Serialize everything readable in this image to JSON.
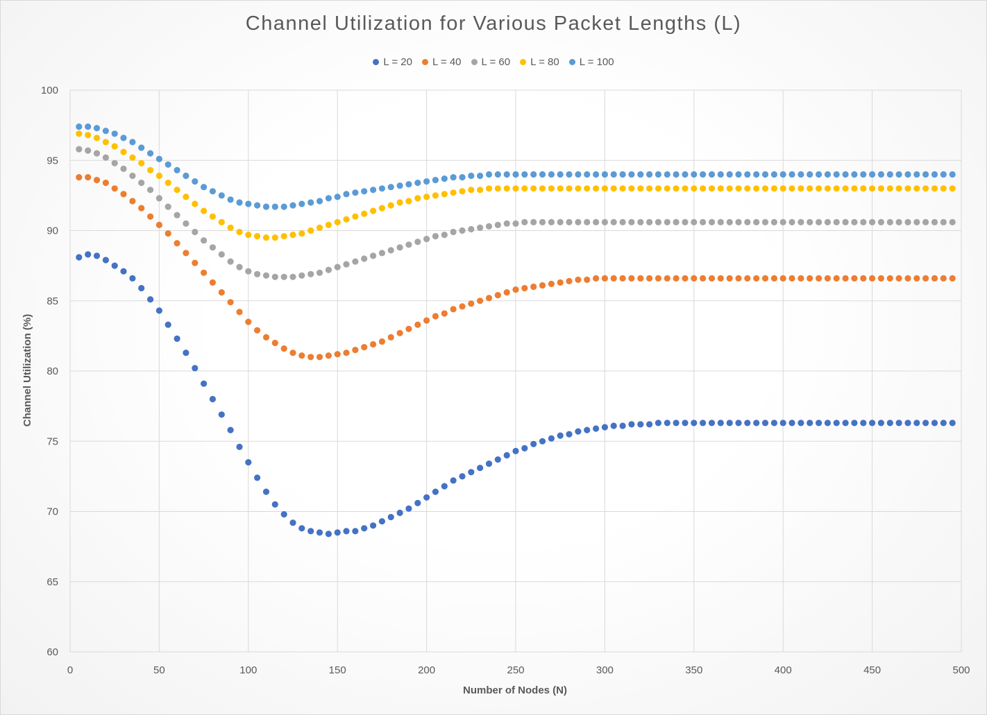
{
  "chart_data": {
    "type": "scatter",
    "title": "Channel Utilization for Various Packet Lengths (L)",
    "xlabel": "Number of Nodes (N)",
    "ylabel": "Channel Utilization (%)",
    "xlim": [
      0,
      500
    ],
    "ylim": [
      60,
      100
    ],
    "xticks": [
      0,
      50,
      100,
      150,
      200,
      250,
      300,
      350,
      400,
      450,
      500
    ],
    "yticks": [
      60,
      65,
      70,
      75,
      80,
      85,
      90,
      95,
      100
    ],
    "grid": true,
    "legend_position": "top",
    "x_sampling": {
      "start": 5,
      "end": 500,
      "step": 5
    },
    "series": [
      {
        "name": "L = 20",
        "color": "#4472C4",
        "values": [
          88.1,
          88.3,
          88.2,
          87.9,
          87.5,
          87.1,
          86.6,
          85.9,
          85.1,
          84.3,
          83.3,
          82.3,
          81.3,
          80.2,
          79.1,
          78.0,
          76.9,
          75.8,
          74.6,
          73.5,
          72.4,
          71.4,
          70.5,
          69.8,
          69.2,
          68.8,
          68.6,
          68.5,
          68.4,
          68.5,
          68.6,
          68.6,
          68.8,
          69.0,
          69.3,
          69.6,
          69.9,
          70.2,
          70.6,
          71.0,
          71.4,
          71.8,
          72.2,
          72.5,
          72.8,
          73.1,
          73.4,
          73.7,
          74.0,
          74.3,
          74.5,
          74.8,
          75.0,
          75.2,
          75.4,
          75.5,
          75.7,
          75.8,
          75.9,
          76.0,
          76.1,
          76.1,
          76.2,
          76.2,
          76.2,
          76.3,
          76.3,
          76.3,
          76.3,
          76.3,
          76.3,
          76.3,
          76.3,
          76.3,
          76.3,
          76.3,
          76.3,
          76.3,
          76.3,
          76.3,
          76.3,
          76.3,
          76.3,
          76.3,
          76.3,
          76.3,
          76.3,
          76.3,
          76.3,
          76.3,
          76.3,
          76.3,
          76.3,
          76.3,
          76.3,
          76.3,
          76.3,
          76.3,
          76.3
        ]
      },
      {
        "name": "L = 40",
        "color": "#ED7D31",
        "values": [
          93.8,
          93.8,
          93.6,
          93.4,
          93.0,
          92.6,
          92.1,
          91.6,
          91.0,
          90.4,
          89.8,
          89.1,
          88.4,
          87.7,
          87.0,
          86.3,
          85.6,
          84.9,
          84.2,
          83.5,
          82.9,
          82.4,
          82.0,
          81.6,
          81.3,
          81.1,
          81.0,
          81.0,
          81.1,
          81.2,
          81.3,
          81.5,
          81.7,
          81.9,
          82.1,
          82.4,
          82.7,
          83.0,
          83.3,
          83.6,
          83.9,
          84.1,
          84.4,
          84.6,
          84.8,
          85.0,
          85.2,
          85.4,
          85.6,
          85.8,
          85.9,
          86.0,
          86.1,
          86.2,
          86.3,
          86.4,
          86.5,
          86.5,
          86.6,
          86.6,
          86.6,
          86.6,
          86.6,
          86.6,
          86.6,
          86.6,
          86.6,
          86.6,
          86.6,
          86.6,
          86.6,
          86.6,
          86.6,
          86.6,
          86.6,
          86.6,
          86.6,
          86.6,
          86.6,
          86.6,
          86.6,
          86.6,
          86.6,
          86.6,
          86.6,
          86.6,
          86.6,
          86.6,
          86.6,
          86.6,
          86.6,
          86.6,
          86.6,
          86.6,
          86.6,
          86.6,
          86.6,
          86.6,
          86.6
        ]
      },
      {
        "name": "L = 60",
        "color": "#A5A5A5",
        "values": [
          95.8,
          95.7,
          95.5,
          95.2,
          94.8,
          94.4,
          93.9,
          93.4,
          92.9,
          92.3,
          91.7,
          91.1,
          90.5,
          89.9,
          89.3,
          88.8,
          88.3,
          87.8,
          87.4,
          87.1,
          86.9,
          86.8,
          86.7,
          86.7,
          86.7,
          86.8,
          86.9,
          87.0,
          87.2,
          87.4,
          87.6,
          87.8,
          88.0,
          88.2,
          88.4,
          88.6,
          88.8,
          89.0,
          89.2,
          89.4,
          89.6,
          89.7,
          89.9,
          90.0,
          90.1,
          90.2,
          90.3,
          90.4,
          90.5,
          90.5,
          90.6,
          90.6,
          90.6,
          90.6,
          90.6,
          90.6,
          90.6,
          90.6,
          90.6,
          90.6,
          90.6,
          90.6,
          90.6,
          90.6,
          90.6,
          90.6,
          90.6,
          90.6,
          90.6,
          90.6,
          90.6,
          90.6,
          90.6,
          90.6,
          90.6,
          90.6,
          90.6,
          90.6,
          90.6,
          90.6,
          90.6,
          90.6,
          90.6,
          90.6,
          90.6,
          90.6,
          90.6,
          90.6,
          90.6,
          90.6,
          90.6,
          90.6,
          90.6,
          90.6,
          90.6,
          90.6,
          90.6,
          90.6,
          90.6
        ]
      },
      {
        "name": "L = 80",
        "color": "#FFC000",
        "values": [
          96.9,
          96.8,
          96.6,
          96.3,
          96.0,
          95.6,
          95.2,
          94.8,
          94.3,
          93.9,
          93.4,
          92.9,
          92.4,
          91.9,
          91.4,
          91.0,
          90.6,
          90.2,
          89.9,
          89.7,
          89.6,
          89.5,
          89.5,
          89.6,
          89.7,
          89.8,
          90.0,
          90.2,
          90.4,
          90.6,
          90.8,
          91.0,
          91.2,
          91.4,
          91.6,
          91.8,
          92.0,
          92.1,
          92.3,
          92.4,
          92.5,
          92.6,
          92.7,
          92.8,
          92.9,
          92.9,
          93.0,
          93.0,
          93.0,
          93.0,
          93.0,
          93.0,
          93.0,
          93.0,
          93.0,
          93.0,
          93.0,
          93.0,
          93.0,
          93.0,
          93.0,
          93.0,
          93.0,
          93.0,
          93.0,
          93.0,
          93.0,
          93.0,
          93.0,
          93.0,
          93.0,
          93.0,
          93.0,
          93.0,
          93.0,
          93.0,
          93.0,
          93.0,
          93.0,
          93.0,
          93.0,
          93.0,
          93.0,
          93.0,
          93.0,
          93.0,
          93.0,
          93.0,
          93.0,
          93.0,
          93.0,
          93.0,
          93.0,
          93.0,
          93.0,
          93.0,
          93.0,
          93.0,
          93.0
        ]
      },
      {
        "name": "L = 100",
        "color": "#5B9BD5",
        "values": [
          97.4,
          97.4,
          97.3,
          97.1,
          96.9,
          96.6,
          96.3,
          95.9,
          95.5,
          95.1,
          94.7,
          94.3,
          93.9,
          93.5,
          93.1,
          92.8,
          92.5,
          92.2,
          92.0,
          91.9,
          91.8,
          91.7,
          91.7,
          91.7,
          91.8,
          91.9,
          92.0,
          92.1,
          92.3,
          92.4,
          92.6,
          92.7,
          92.8,
          92.9,
          93.0,
          93.1,
          93.2,
          93.3,
          93.4,
          93.5,
          93.6,
          93.7,
          93.8,
          93.8,
          93.9,
          93.9,
          94.0,
          94.0,
          94.0,
          94.0,
          94.0,
          94.0,
          94.0,
          94.0,
          94.0,
          94.0,
          94.0,
          94.0,
          94.0,
          94.0,
          94.0,
          94.0,
          94.0,
          94.0,
          94.0,
          94.0,
          94.0,
          94.0,
          94.0,
          94.0,
          94.0,
          94.0,
          94.0,
          94.0,
          94.0,
          94.0,
          94.0,
          94.0,
          94.0,
          94.0,
          94.0,
          94.0,
          94.0,
          94.0,
          94.0,
          94.0,
          94.0,
          94.0,
          94.0,
          94.0,
          94.0,
          94.0,
          94.0,
          94.0,
          94.0,
          94.0,
          94.0,
          94.0,
          94.0
        ]
      }
    ]
  }
}
